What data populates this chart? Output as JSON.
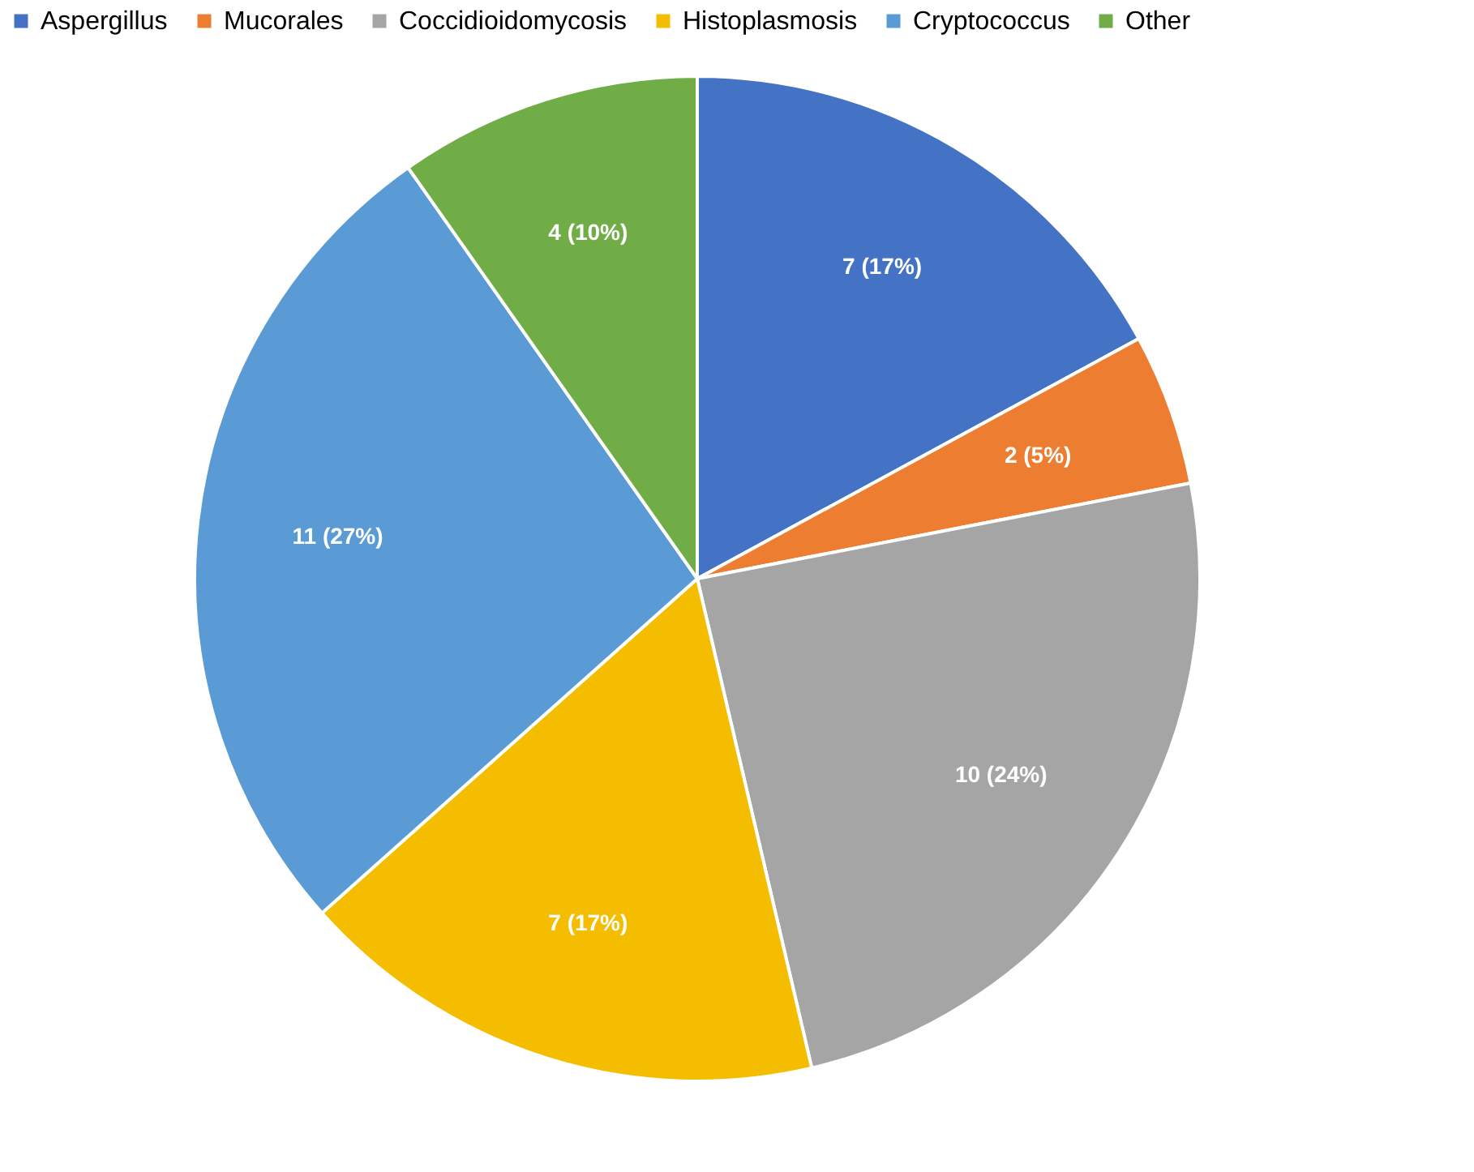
{
  "chart_data": {
    "type": "pie",
    "categories": [
      "Aspergillus",
      "Mucorales",
      "Coccidioidomycosis",
      "Histoplasmosis",
      "Cryptococcus",
      "Other"
    ],
    "values": [
      7,
      2,
      10,
      7,
      11,
      4
    ],
    "colors": [
      "#4472c4",
      "#ed7d31",
      "#a5a5a5",
      "#f5bd00",
      "#5b9bd5",
      "#70ad47"
    ],
    "value_labels": [
      "7 (17%)",
      "2 (5%)",
      "10 (24%)",
      "7 (17%)",
      "11 (27%)",
      "4 (10%)"
    ],
    "legend": "top"
  }
}
